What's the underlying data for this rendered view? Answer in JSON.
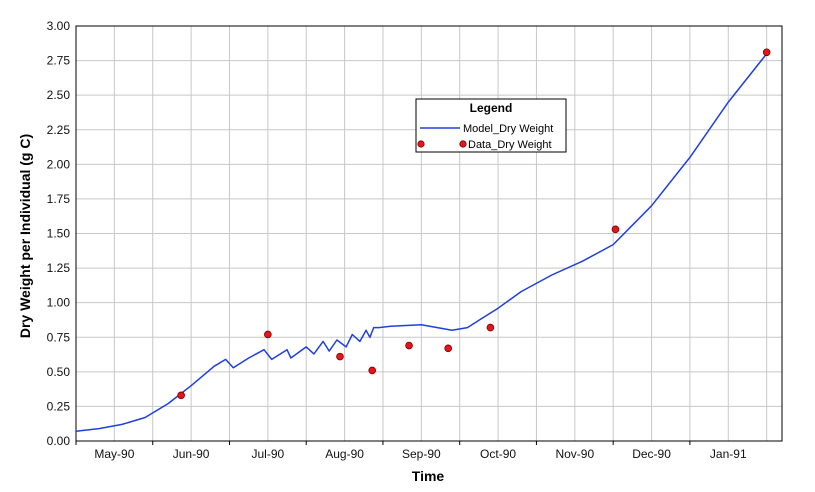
{
  "chart_data": {
    "type": "line",
    "xlabel": "Time",
    "ylabel": "Dry Weight per Individual (g C)",
    "x_tick_labels": [
      "May-90",
      "Jun-90",
      "Jul-90",
      "Aug-90",
      "Sep-90",
      "Oct-90",
      "Nov-90",
      "Dec-90",
      "Jan-91"
    ],
    "x_range_months": [
      0,
      9.2
    ],
    "ylim": [
      0,
      3.0
    ],
    "y_ticks": [
      "0.00",
      "0.25",
      "0.50",
      "0.75",
      "1.00",
      "1.25",
      "1.50",
      "1.75",
      "2.00",
      "2.25",
      "2.50",
      "2.75",
      "3.00"
    ],
    "grid": true,
    "legend": {
      "title": "Legend",
      "position": "top-center",
      "entries": [
        {
          "name": "Model_Dry Weight",
          "style": "line"
        },
        {
          "name": "Data_Dry Weight",
          "style": "marker"
        }
      ]
    },
    "series": [
      {
        "name": "Model_Dry Weight",
        "color": "#1f3fe0",
        "kind": "line",
        "x": [
          0.0,
          0.3,
          0.6,
          0.9,
          1.2,
          1.5,
          1.8,
          1.95,
          2.05,
          2.25,
          2.45,
          2.55,
          2.75,
          2.8,
          3.0,
          3.1,
          3.22,
          3.3,
          3.4,
          3.52,
          3.6,
          3.7,
          3.78,
          3.83,
          3.88,
          3.95,
          4.1,
          4.5,
          4.9,
          5.1,
          5.3,
          5.5,
          5.8,
          6.2,
          6.6,
          7.0,
          7.5,
          8.0,
          8.5,
          9.0
        ],
        "y": [
          0.07,
          0.09,
          0.12,
          0.17,
          0.27,
          0.4,
          0.54,
          0.59,
          0.53,
          0.6,
          0.66,
          0.59,
          0.66,
          0.6,
          0.68,
          0.63,
          0.72,
          0.65,
          0.73,
          0.68,
          0.77,
          0.72,
          0.8,
          0.75,
          0.82,
          0.82,
          0.83,
          0.84,
          0.8,
          0.82,
          0.89,
          0.96,
          1.08,
          1.2,
          1.3,
          1.42,
          1.7,
          2.05,
          2.45,
          2.8
        ]
      },
      {
        "name": "Data_Dry Weight",
        "color": "#e8141b",
        "kind": "scatter",
        "x": [
          1.37,
          2.5,
          3.44,
          3.86,
          4.34,
          4.85,
          5.4,
          7.03,
          9.0
        ],
        "y": [
          0.33,
          0.77,
          0.61,
          0.51,
          0.69,
          0.67,
          0.82,
          1.53,
          2.81
        ]
      }
    ]
  }
}
